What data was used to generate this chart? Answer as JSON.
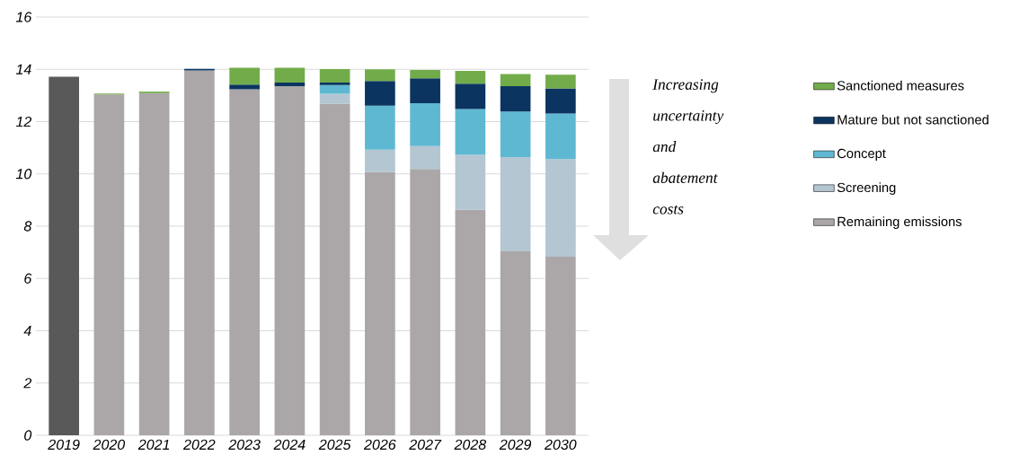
{
  "chart_data": {
    "type": "bar",
    "stacked": true,
    "categories": [
      "2019",
      "2020",
      "2021",
      "2022",
      "2023",
      "2024",
      "2025",
      "2026",
      "2027",
      "2028",
      "2029",
      "2030"
    ],
    "series": [
      {
        "name": "Remaining emissions",
        "color": "#aba7a8",
        "colors": [
          "#595959",
          "#aba7a8",
          "#aba7a8",
          "#aba7a8",
          "#aba7a8",
          "#aba7a8",
          "#aba7a8",
          "#aba7a8",
          "#aba7a8",
          "#aba7a8",
          "#aba7a8",
          "#aba7a8"
        ],
        "values": [
          13.72,
          13.04,
          13.09,
          13.96,
          13.24,
          13.36,
          12.69,
          10.07,
          10.19,
          8.63,
          7.04,
          6.83
        ]
      },
      {
        "name": "Screening",
        "color": "#b3c6d2",
        "values": [
          null,
          null,
          null,
          null,
          null,
          null,
          0.37,
          0.86,
          0.87,
          2.1,
          3.6,
          3.74
        ]
      },
      {
        "name": "Concept",
        "color": "#5fb8d2",
        "values": [
          null,
          null,
          null,
          null,
          null,
          null,
          0.34,
          1.68,
          1.64,
          1.75,
          1.75,
          1.74
        ]
      },
      {
        "name": "Mature but not sanctioned",
        "color": "#0b3560",
        "values": [
          null,
          null,
          null,
          0.06,
          0.18,
          0.13,
          0.09,
          0.94,
          0.96,
          0.97,
          0.97,
          0.96
        ]
      },
      {
        "name": "Sanctioned measures",
        "color": "#72ac4a",
        "values": [
          null,
          0.03,
          0.06,
          null,
          0.64,
          0.57,
          0.52,
          0.45,
          0.31,
          0.49,
          0.46,
          0.52
        ]
      }
    ],
    "ylim": [
      0,
      16
    ],
    "yticks": [
      0,
      2,
      4,
      6,
      8,
      10,
      12,
      14,
      16
    ],
    "grid": "y",
    "legend": "right",
    "annotations": [
      "Increasing uncertainty and abatement costs"
    ]
  }
}
